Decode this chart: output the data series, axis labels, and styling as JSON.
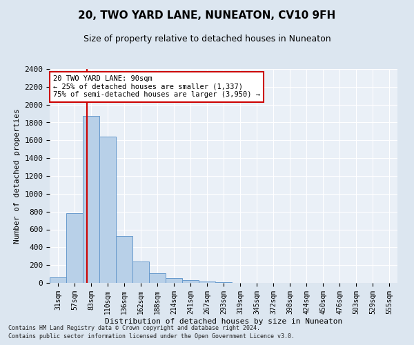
{
  "title": "20, TWO YARD LANE, NUNEATON, CV10 9FH",
  "subtitle": "Size of property relative to detached houses in Nuneaton",
  "xlabel": "Distribution of detached houses by size in Nuneaton",
  "ylabel": "Number of detached properties",
  "bar_labels": [
    "31sqm",
    "57sqm",
    "83sqm",
    "110sqm",
    "136sqm",
    "162sqm",
    "188sqm",
    "214sqm",
    "241sqm",
    "267sqm",
    "293sqm",
    "319sqm",
    "345sqm",
    "372sqm",
    "398sqm",
    "424sqm",
    "450sqm",
    "476sqm",
    "503sqm",
    "529sqm",
    "555sqm"
  ],
  "bar_values": [
    60,
    780,
    1870,
    1640,
    530,
    240,
    110,
    55,
    30,
    15,
    5,
    2,
    0,
    0,
    0,
    0,
    0,
    0,
    0,
    0,
    0
  ],
  "bar_color": "#b8d0e8",
  "bar_edge_color": "#6699cc",
  "vline_color": "#cc0000",
  "annotation_text": "20 TWO YARD LANE: 90sqm\n← 25% of detached houses are smaller (1,337)\n75% of semi-detached houses are larger (3,950) →",
  "annotation_box_color": "#ffffff",
  "annotation_box_edge": "#cc0000",
  "ylim": [
    0,
    2400
  ],
  "yticks": [
    0,
    200,
    400,
    600,
    800,
    1000,
    1200,
    1400,
    1600,
    1800,
    2000,
    2200,
    2400
  ],
  "footer1": "Contains HM Land Registry data © Crown copyright and database right 2024.",
  "footer2": "Contains public sector information licensed under the Open Government Licence v3.0.",
  "bg_color": "#dce6f0",
  "plot_bg_color": "#eaf0f7",
  "title_fontsize": 11,
  "subtitle_fontsize": 9,
  "xlabel_fontsize": 8,
  "ylabel_fontsize": 8,
  "xtick_fontsize": 7,
  "ytick_fontsize": 8
}
